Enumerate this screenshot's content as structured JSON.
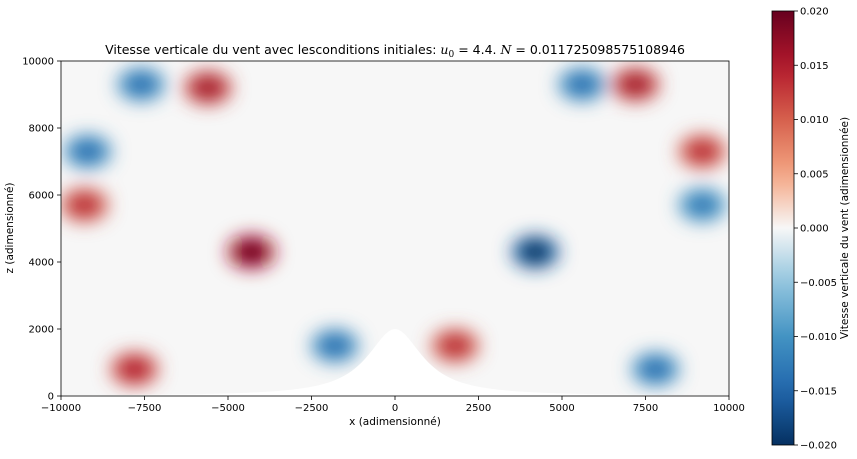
{
  "figure": {
    "title_text": "Vitesse verticale du vent avec lesconditions initiales: ",
    "title_u0_symbol": "u",
    "title_u0_sub": "0",
    "title_u0_value": " =  4.4. ",
    "title_N_symbol": "N",
    "title_N_value": " = 0.011725098575108946"
  },
  "chart_data": {
    "type": "heatmap",
    "title": "Vitesse verticale du vent avec lesconditions initiales: u_0 =  4.4. N = 0.011725098575108946",
    "xlabel": "x (adimensionné)",
    "ylabel": "z (adimensionné)",
    "xlim": [
      -10000,
      10000
    ],
    "ylim": [
      0,
      10000
    ],
    "x_ticks": [
      -10000,
      -7500,
      -5000,
      -2500,
      0,
      2500,
      5000,
      7500,
      10000
    ],
    "x_tick_labels": [
      "−10000",
      "−7500",
      "−5000",
      "−2500",
      "0",
      "2500",
      "5000",
      "7500",
      "10000"
    ],
    "y_ticks": [
      0,
      2000,
      4000,
      6000,
      8000,
      10000
    ],
    "y_tick_labels": [
      "0",
      "2000",
      "4000",
      "6000",
      "8000",
      "10000"
    ],
    "colorbar": {
      "label": "Vitesse verticale du vent (adimensionnée)",
      "range": [
        -0.02,
        0.02
      ],
      "ticks": [
        0.02,
        0.015,
        0.01,
        0.005,
        0.0,
        -0.005,
        -0.01,
        -0.015,
        -0.02
      ],
      "tick_labels": [
        "0.020",
        "0.015",
        "0.010",
        "0.005",
        "0.000",
        "−0.005",
        "−0.010",
        "−0.015",
        "−0.020"
      ],
      "colormap": "RdBu_r",
      "color_high": "#67001f",
      "color_mid": "#f7f7f7",
      "color_low": "#053061"
    },
    "terrain": {
      "shape": "witch-of-agnesi mountain",
      "peak_x": 0,
      "peak_height": 2000,
      "half_width": 1000
    },
    "extrema": [
      {
        "x": -4300,
        "z": 4300,
        "w": 0.02
      },
      {
        "x": 4200,
        "z": 4300,
        "w": -0.02
      },
      {
        "x": -5600,
        "z": 9200,
        "w": 0.016
      },
      {
        "x": 7200,
        "z": 9300,
        "w": 0.016
      },
      {
        "x": -7600,
        "z": 9300,
        "w": -0.014
      },
      {
        "x": 5600,
        "z": 9300,
        "w": -0.014
      },
      {
        "x": -9300,
        "z": 5700,
        "w": 0.014
      },
      {
        "x": 9200,
        "z": 7300,
        "w": 0.014
      },
      {
        "x": -9200,
        "z": 7300,
        "w": -0.014
      },
      {
        "x": 9200,
        "z": 5700,
        "w": -0.013
      },
      {
        "x": -7800,
        "z": 800,
        "w": 0.015
      },
      {
        "x": 7800,
        "z": 800,
        "w": -0.014
      },
      {
        "x": 1800,
        "z": 1500,
        "w": 0.014
      },
      {
        "x": -1800,
        "z": 1500,
        "w": -0.014
      }
    ]
  }
}
